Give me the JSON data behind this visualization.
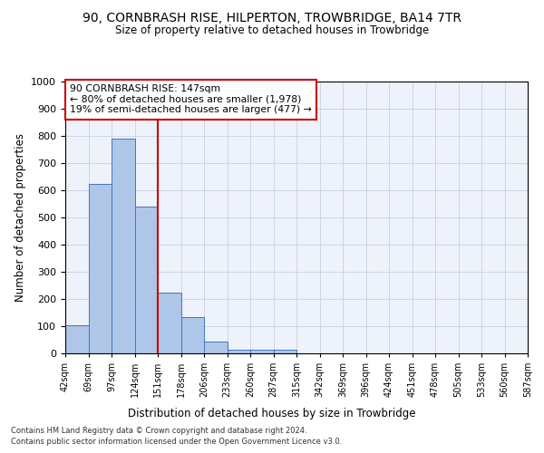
{
  "title": "90, CORNBRASH RISE, HILPERTON, TROWBRIDGE, BA14 7TR",
  "subtitle": "Size of property relative to detached houses in Trowbridge",
  "xlabel": "Distribution of detached houses by size in Trowbridge",
  "ylabel": "Number of detached properties",
  "bar_values": [
    103,
    622,
    790,
    540,
    222,
    135,
    45,
    15,
    15,
    12,
    0,
    0,
    0,
    0,
    0,
    0,
    0,
    0,
    0,
    0
  ],
  "bar_color": "#aec6e8",
  "bar_edge_color": "#4472c4",
  "xticklabels": [
    "42sqm",
    "69sqm",
    "97sqm",
    "124sqm",
    "151sqm",
    "178sqm",
    "206sqm",
    "233sqm",
    "260sqm",
    "287sqm",
    "315sqm",
    "342sqm",
    "369sqm",
    "396sqm",
    "424sqm",
    "451sqm",
    "478sqm",
    "505sqm",
    "533sqm",
    "560sqm",
    "587sqm"
  ],
  "vline_x_index": 4,
  "vline_color": "#cc0000",
  "ylim": [
    0,
    1000
  ],
  "yticks": [
    0,
    100,
    200,
    300,
    400,
    500,
    600,
    700,
    800,
    900,
    1000
  ],
  "annotation_text": "90 CORNBRASH RISE: 147sqm\n← 80% of detached houses are smaller (1,978)\n19% of semi-detached houses are larger (477) →",
  "annotation_box_color": "#ffffff",
  "annotation_border_color": "#cc0000",
  "footer_line1": "Contains HM Land Registry data © Crown copyright and database right 2024.",
  "footer_line2": "Contains public sector information licensed under the Open Government Licence v3.0.",
  "plot_bg_color": "#eef2fa"
}
